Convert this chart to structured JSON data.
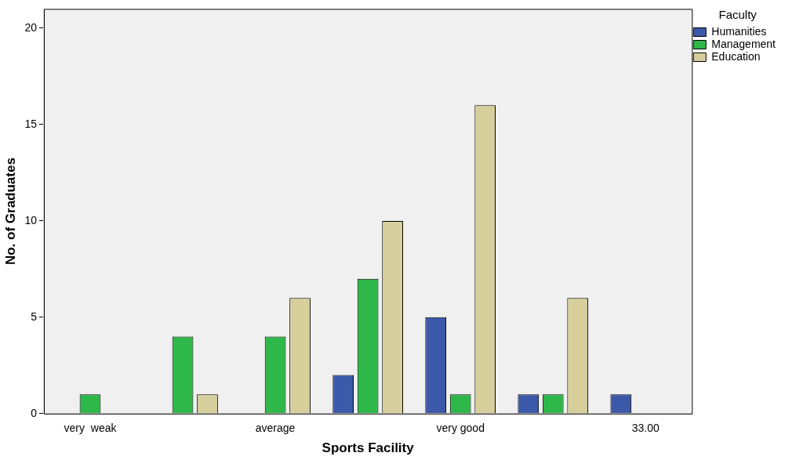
{
  "chart_data": {
    "type": "bar",
    "xlabel": "Sports Facility",
    "ylabel": "No. of Graduates",
    "legend_title": "Faculty",
    "categories": [
      "very  weak",
      null,
      "average",
      null,
      "very good",
      null,
      "33.00"
    ],
    "series": [
      {
        "name": "Humanities",
        "color": "#3c58a8",
        "values": [
          null,
          null,
          null,
          2,
          5,
          1,
          1
        ]
      },
      {
        "name": "Management",
        "color": "#2eb84a",
        "values": [
          1,
          4,
          4,
          7,
          1,
          1,
          null
        ]
      },
      {
        "name": "Education",
        "color": "#d6cf9b",
        "values": [
          null,
          1,
          6,
          10,
          16,
          6,
          null
        ]
      }
    ],
    "ylim": [
      0,
      21
    ],
    "yticks": [
      0,
      5,
      10,
      15,
      20
    ],
    "grid": false,
    "legend": "top right"
  }
}
